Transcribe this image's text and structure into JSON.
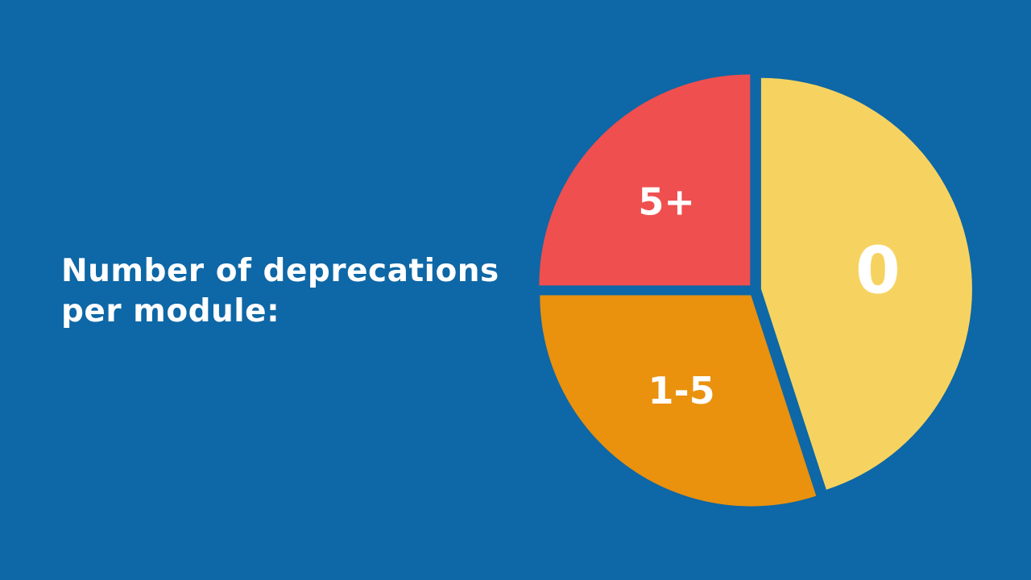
{
  "title": {
    "line1": "Number of deprecations",
    "line2": "per module:"
  },
  "colors": {
    "background": "#0e67a6",
    "label": "#ffffff"
  },
  "chart_data": {
    "type": "pie",
    "title": "Number of deprecations per module:",
    "slices": [
      {
        "label": "0",
        "value": 45,
        "color": "#f6d360"
      },
      {
        "label": "1-5",
        "value": 30,
        "color": "#ea910d"
      },
      {
        "label": "5+",
        "value": 25,
        "color": "#ef4f4f"
      }
    ],
    "legend": "none"
  }
}
